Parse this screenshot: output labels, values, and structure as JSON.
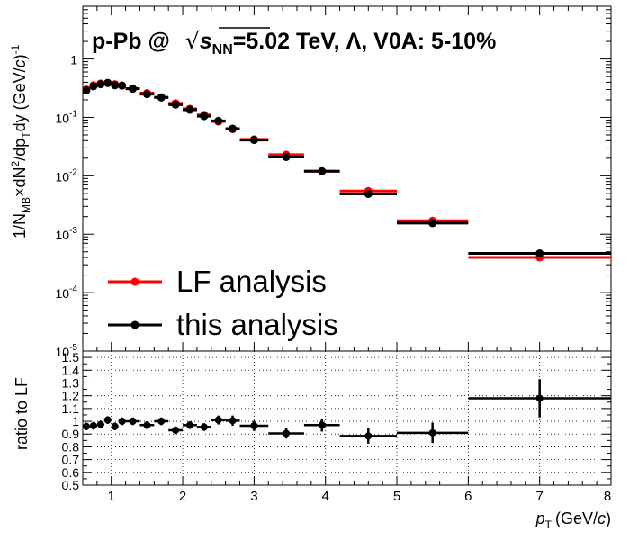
{
  "chart_data": [
    {
      "type": "scatter",
      "panel": "spectrum",
      "title": "p-Pb @ √s_NN=5.02 TeV, Λ, V0A: 5-10%",
      "title_parts": {
        "prefix": "p-Pb @",
        "sqrt_symbol": "√",
        "s": "s",
        "s_sub": "NN",
        "rest": "=5.02 TeV, Λ, V0A: 5-10%"
      },
      "ylabel": "1/N_MB×dN²/dp_T dy (GeV/c)⁻¹",
      "ylabel_parts": {
        "a": "1/N",
        "a_sub": "MB",
        "b": "×dN",
        "b_sup": "2",
        "c": "/dp",
        "c_sub": "T",
        "d": "dy (GeV/",
        "d_it": "c",
        "e": ")",
        "e_sup": "-1"
      },
      "yscale": "log",
      "ylim": [
        1e-05,
        8
      ],
      "xlim": [
        0.6,
        8
      ],
      "y_ticks": [
        {
          "value": 1,
          "base": "1",
          "exp": ""
        },
        {
          "value": 0.1,
          "base": "10",
          "exp": "-1"
        },
        {
          "value": 0.01,
          "base": "10",
          "exp": "-2"
        },
        {
          "value": 0.001,
          "base": "10",
          "exp": "-3"
        },
        {
          "value": 0.0001,
          "base": "10",
          "exp": "-4"
        },
        {
          "value": 1e-05,
          "base": "10",
          "exp": "-5"
        }
      ],
      "legend": {
        "placement": "bottom-left",
        "entries": [
          {
            "label": "LF analysis",
            "color": "#ff0000"
          },
          {
            "label": "this analysis",
            "color": "#000000"
          }
        ]
      },
      "series": [
        {
          "name": "LF analysis",
          "color": "#ff0000",
          "points": [
            {
              "xlo": 0.6,
              "xhi": 0.7,
              "y": 0.3
            },
            {
              "xlo": 0.7,
              "xhi": 0.8,
              "y": 0.355
            },
            {
              "xlo": 0.8,
              "xhi": 0.9,
              "y": 0.38
            },
            {
              "xlo": 0.9,
              "xhi": 1.0,
              "y": 0.385
            },
            {
              "xlo": 1.0,
              "xhi": 1.1,
              "y": 0.37
            },
            {
              "xlo": 1.1,
              "xhi": 1.2,
              "y": 0.35
            },
            {
              "xlo": 1.2,
              "xhi": 1.4,
              "y": 0.31
            },
            {
              "xlo": 1.4,
              "xhi": 1.6,
              "y": 0.26
            },
            {
              "xlo": 1.6,
              "xhi": 1.8,
              "y": 0.22
            },
            {
              "xlo": 1.8,
              "xhi": 2.0,
              "y": 0.175
            },
            {
              "xlo": 2.0,
              "xhi": 2.2,
              "y": 0.14
            },
            {
              "xlo": 2.2,
              "xhi": 2.4,
              "y": 0.11
            },
            {
              "xlo": 2.4,
              "xhi": 2.6,
              "y": 0.085
            },
            {
              "xlo": 2.6,
              "xhi": 2.8,
              "y": 0.063
            },
            {
              "xlo": 2.8,
              "xhi": 3.2,
              "y": 0.042
            },
            {
              "xlo": 3.2,
              "xhi": 3.7,
              "y": 0.023
            },
            {
              "xlo": 3.7,
              "xhi": 4.2,
              "y": 0.012
            },
            {
              "xlo": 4.2,
              "xhi": 5.0,
              "y": 0.0055
            },
            {
              "xlo": 5.0,
              "xhi": 6.0,
              "y": 0.0017
            },
            {
              "xlo": 6.0,
              "xhi": 8.0,
              "y": 0.0004
            }
          ]
        },
        {
          "name": "this analysis",
          "color": "#000000",
          "points": [
            {
              "xlo": 0.6,
              "xhi": 0.7,
              "y": 0.29
            },
            {
              "xlo": 0.7,
              "xhi": 0.8,
              "y": 0.34
            },
            {
              "xlo": 0.8,
              "xhi": 0.9,
              "y": 0.37
            },
            {
              "xlo": 0.9,
              "xhi": 1.0,
              "y": 0.39
            },
            {
              "xlo": 1.0,
              "xhi": 1.1,
              "y": 0.355
            },
            {
              "xlo": 1.1,
              "xhi": 1.2,
              "y": 0.35
            },
            {
              "xlo": 1.2,
              "xhi": 1.4,
              "y": 0.31
            },
            {
              "xlo": 1.4,
              "xhi": 1.6,
              "y": 0.25
            },
            {
              "xlo": 1.6,
              "xhi": 1.8,
              "y": 0.22
            },
            {
              "xlo": 1.8,
              "xhi": 2.0,
              "y": 0.165
            },
            {
              "xlo": 2.0,
              "xhi": 2.2,
              "y": 0.135
            },
            {
              "xlo": 2.2,
              "xhi": 2.4,
              "y": 0.105
            },
            {
              "xlo": 2.4,
              "xhi": 2.6,
              "y": 0.087
            },
            {
              "xlo": 2.6,
              "xhi": 2.8,
              "y": 0.064
            },
            {
              "xlo": 2.8,
              "xhi": 3.2,
              "y": 0.041
            },
            {
              "xlo": 3.2,
              "xhi": 3.7,
              "y": 0.021
            },
            {
              "xlo": 3.7,
              "xhi": 4.2,
              "y": 0.012
            },
            {
              "xlo": 4.2,
              "xhi": 5.0,
              "y": 0.0049
            },
            {
              "xlo": 5.0,
              "xhi": 6.0,
              "y": 0.00155
            },
            {
              "xlo": 6.0,
              "xhi": 8.0,
              "y": 0.00047
            }
          ]
        }
      ]
    },
    {
      "type": "scatter",
      "panel": "ratio",
      "xlabel": "p_T (GeV/c)",
      "xlabel_parts": {
        "p": "p",
        "p_sub": "T",
        "rest": "(GeV/",
        "it": "c",
        "end": ")"
      },
      "ylabel": "ratio to LF",
      "xlim": [
        0.6,
        8
      ],
      "ylim": [
        0.5,
        1.55
      ],
      "x_ticks": [
        "1",
        "2",
        "3",
        "4",
        "5",
        "6",
        "7",
        "8"
      ],
      "y_ticks": [
        "0.5",
        "0.6",
        "0.7",
        "0.8",
        "0.9",
        "1",
        "1.1",
        "1.2",
        "1.3",
        "1.4",
        "1.5"
      ],
      "grid": true,
      "series": [
        {
          "name": "this analysis",
          "color": "#000000",
          "points": [
            {
              "xlo": 0.6,
              "xhi": 0.7,
              "y": 0.96,
              "err": 0.03
            },
            {
              "xlo": 0.7,
              "xhi": 0.8,
              "y": 0.965,
              "err": 0.03
            },
            {
              "xlo": 0.8,
              "xhi": 0.9,
              "y": 0.975,
              "err": 0.03
            },
            {
              "xlo": 0.9,
              "xhi": 1.0,
              "y": 1.01,
              "err": 0.03
            },
            {
              "xlo": 1.0,
              "xhi": 1.1,
              "y": 0.96,
              "err": 0.03
            },
            {
              "xlo": 1.1,
              "xhi": 1.2,
              "y": 1.0,
              "err": 0.03
            },
            {
              "xlo": 1.2,
              "xhi": 1.4,
              "y": 1.0,
              "err": 0.03
            },
            {
              "xlo": 1.4,
              "xhi": 1.6,
              "y": 0.97,
              "err": 0.03
            },
            {
              "xlo": 1.6,
              "xhi": 1.8,
              "y": 1.0,
              "err": 0.03
            },
            {
              "xlo": 1.8,
              "xhi": 2.0,
              "y": 0.93,
              "err": 0.03
            },
            {
              "xlo": 2.0,
              "xhi": 2.2,
              "y": 0.97,
              "err": 0.03
            },
            {
              "xlo": 2.2,
              "xhi": 2.4,
              "y": 0.955,
              "err": 0.03
            },
            {
              "xlo": 2.4,
              "xhi": 2.6,
              "y": 1.01,
              "err": 0.035
            },
            {
              "xlo": 2.6,
              "xhi": 2.8,
              "y": 1.005,
              "err": 0.04
            },
            {
              "xlo": 2.8,
              "xhi": 3.2,
              "y": 0.965,
              "err": 0.04
            },
            {
              "xlo": 3.2,
              "xhi": 3.7,
              "y": 0.905,
              "err": 0.04
            },
            {
              "xlo": 3.7,
              "xhi": 4.2,
              "y": 0.97,
              "err": 0.05
            },
            {
              "xlo": 4.2,
              "xhi": 5.0,
              "y": 0.885,
              "err": 0.06
            },
            {
              "xlo": 5.0,
              "xhi": 6.0,
              "y": 0.91,
              "err": 0.08
            },
            {
              "xlo": 6.0,
              "xhi": 8.0,
              "y": 1.18,
              "err": 0.15
            }
          ]
        }
      ]
    }
  ]
}
